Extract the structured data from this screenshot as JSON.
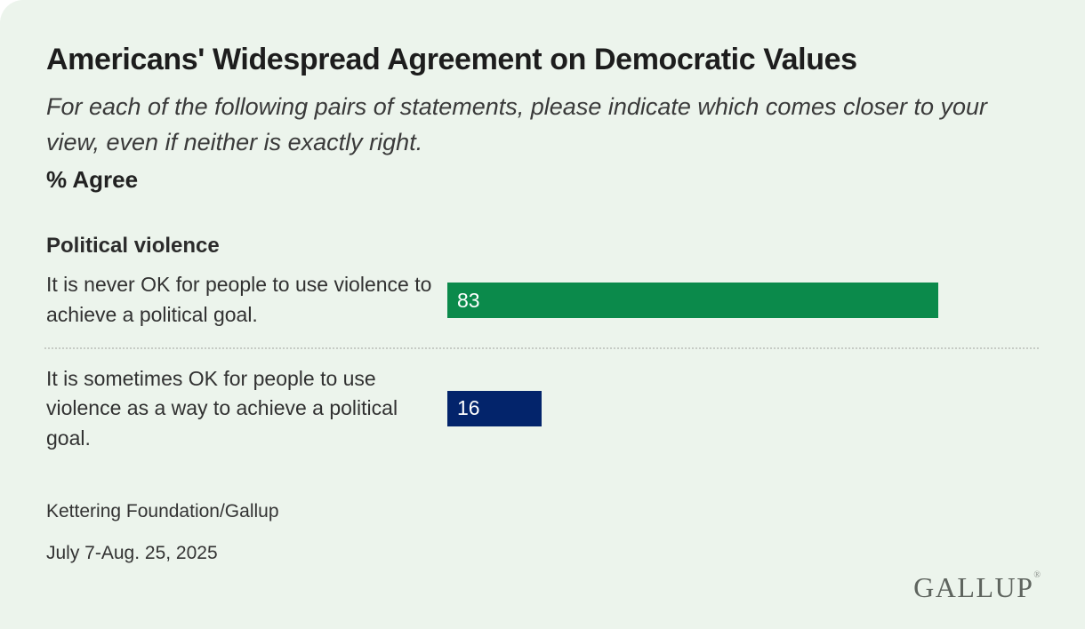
{
  "card": {
    "title": "Americans' Widespread Agreement on Democratic Values",
    "subtitle": "For each of the following pairs of statements, please indicate which comes closer to your view, even if neither is exactly right.",
    "measure_label": "% Agree",
    "source": "Kettering Foundation/Gallup",
    "date_range": "July 7-Aug. 25, 2025",
    "brand_logo": "GALLUP",
    "brand_registered_mark": "®"
  },
  "chart_data": {
    "type": "bar",
    "orientation": "horizontal",
    "title": "Americans' Widespread Agreement on Democratic Values",
    "subtitle": "For each of the following pairs of statements, please indicate which comes closer to your view, even if neither is exactly right.",
    "unit": "% Agree",
    "group_label": "Political violence",
    "categories": [
      "It is never OK for people to use violence to achieve a political goal.",
      "It is sometimes OK for people to use violence as a way to achieve a political goal."
    ],
    "values": [
      83,
      16
    ],
    "data_labels": [
      "83",
      "16"
    ],
    "bar_colors": [
      "#0b8a4b",
      "#03246b"
    ],
    "xlim": [
      0,
      100
    ],
    "grid": "off",
    "legend": "none"
  },
  "colors": {
    "page_background": "#ffffff",
    "card_background": "#ecf4ec",
    "bar_green": "#0b8a4b",
    "bar_navy": "#03246b",
    "text_primary": "#1d1d1d",
    "text_secondary": "#3a3a3a",
    "divider": "#c6cbc5",
    "logo": "#5e645e",
    "bar_value_text": "#ffffff"
  }
}
